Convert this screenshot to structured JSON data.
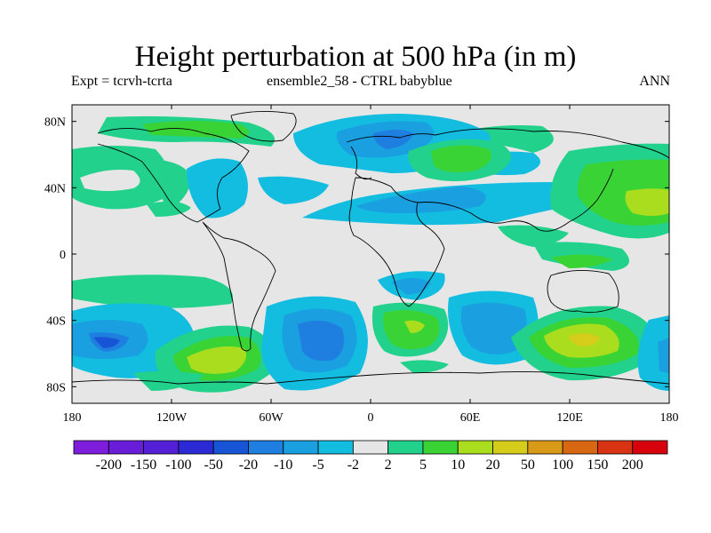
{
  "title": "Height perturbation at 500 hPa (in m)",
  "subtitle_left": "Expt = tcrvh-tcrta",
  "subtitle_center": "ensemble2_58 - CTRL babyblue",
  "subtitle_right": "ANN",
  "lat_ticks": [
    "80N",
    "40N",
    "0",
    "40S",
    "80S"
  ],
  "lon_ticks": [
    "180",
    "120W",
    "60W",
    "0",
    "60E",
    "120E",
    "180"
  ],
  "colorbar": {
    "colors": [
      "#7f1ddd",
      "#6a1dd8",
      "#5320d6",
      "#2b2ad5",
      "#1854d6",
      "#1f7fe0",
      "#1a9fe0",
      "#12bde0",
      "#e6e6e6",
      "#22d28c",
      "#3ad335",
      "#a9dd1e",
      "#d6cd1a",
      "#d89a17",
      "#d86714",
      "#d83413",
      "#d6030d"
    ],
    "labels": [
      "-200",
      "-150",
      "-100",
      "-50",
      "-20",
      "-10",
      "-5",
      "-2",
      "2",
      "5",
      "10",
      "20",
      "50",
      "100",
      "150",
      "200"
    ]
  },
  "map_data": {
    "region": "global",
    "projection": "cylindrical-equidistant",
    "lon_range": [
      -180,
      180
    ],
    "lat_range": [
      -90,
      90
    ],
    "background_level": "-2 to 2",
    "field_summary": [
      {
        "area": "Arctic / Greenland",
        "level": "5 to 10"
      },
      {
        "area": "North Pacific",
        "level": "2 to 10"
      },
      {
        "area": "North Atlantic / Europe",
        "level": "-10 to -2"
      },
      {
        "area": "Central Asia",
        "level": "2 to 10"
      },
      {
        "area": "Northwest Pacific",
        "level": "5 to 20"
      },
      {
        "area": "South Pacific east",
        "level": "5 to 20"
      },
      {
        "area": "South Pacific west",
        "level": "-10 to -2"
      },
      {
        "area": "South Atlantic",
        "level": "-10 to -2"
      },
      {
        "area": "South of Australia",
        "level": "5 to 20"
      },
      {
        "area": "South of Africa",
        "level": "5 to 20"
      }
    ]
  }
}
